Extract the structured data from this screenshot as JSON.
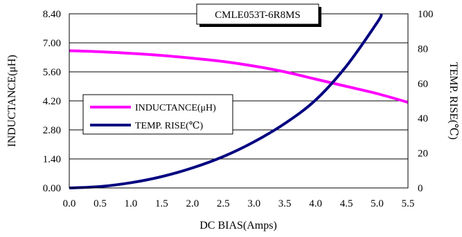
{
  "chart_data": {
    "type": "line",
    "title": "CMLE053T-6R8MS",
    "xlabel": "DC BIAS(Amps)",
    "ylabel": "INDUCTANCE(μH)",
    "y2label": "TEMP. RISE(℃)",
    "xlim": [
      0,
      5.5
    ],
    "ylim": [
      0,
      8.4
    ],
    "y2lim": [
      0,
      100
    ],
    "xticks": [
      "0.0",
      "0.5",
      "1.0",
      "1.5",
      "2.0",
      "2.5",
      "3.0",
      "3.5",
      "4.0",
      "4.5",
      "5.0",
      "5.5"
    ],
    "yticks": [
      "0.00",
      "1.40",
      "2.80",
      "4.20",
      "5.60",
      "7.00",
      "8.40"
    ],
    "y2ticks": [
      "0",
      "20",
      "40",
      "60",
      "80",
      "100"
    ],
    "grid": "horizontal",
    "legend_position": "center-left",
    "series": [
      {
        "name": "INDUCTANCE(μH)",
        "axis": "left",
        "color": "#ff00ff",
        "x": [
          0,
          0.5,
          1.0,
          1.5,
          2.0,
          2.5,
          3.0,
          3.5,
          4.0,
          4.5,
          5.0,
          5.5
        ],
        "values": [
          6.62,
          6.57,
          6.49,
          6.39,
          6.26,
          6.1,
          5.88,
          5.6,
          5.25,
          4.9,
          4.55,
          4.13
        ]
      },
      {
        "name": "TEMP. RISE(℃)",
        "axis": "right",
        "color": "#000080",
        "x": [
          0,
          0.5,
          1.0,
          1.5,
          2.0,
          2.5,
          3.0,
          3.5,
          4.0,
          4.5,
          5.0,
          5.07
        ],
        "values": [
          0,
          0.8,
          3.0,
          6.5,
          11.5,
          18.0,
          26.5,
          37.0,
          50.5,
          70.0,
          95.0,
          100
        ]
      }
    ]
  }
}
